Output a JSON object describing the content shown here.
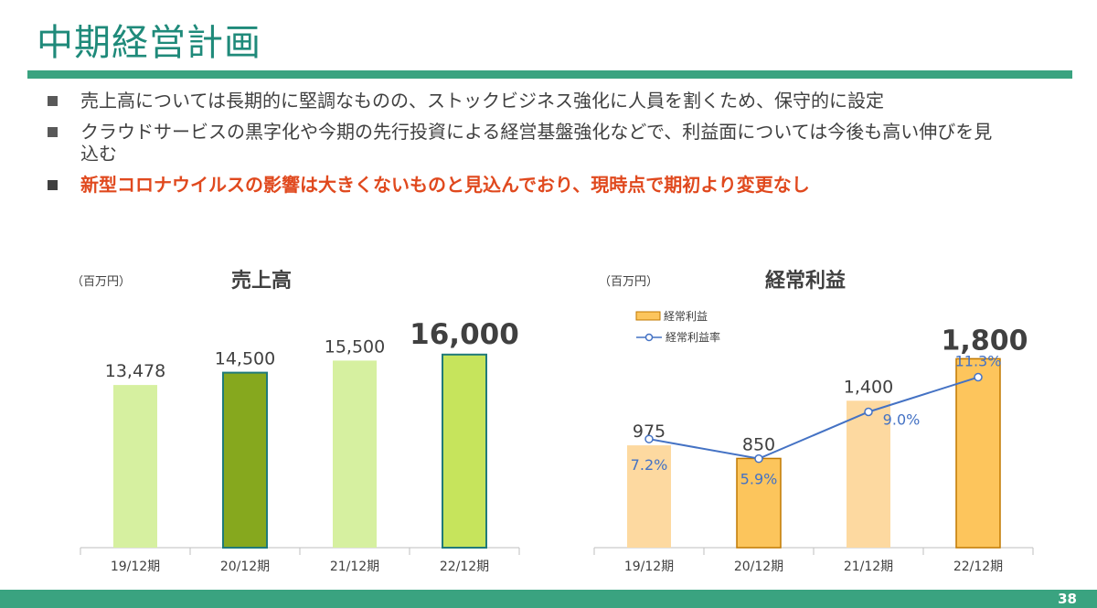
{
  "title": "中期経営計画",
  "bullets": [
    "売上高については長期的に堅調なものの、ストックビジネス強化に人員を割くため、保守的に設定",
    "クラウドサービスの黒字化や今期の先行投資による経営基盤強化などで、利益面については今後も高い伸びを見込む",
    "新型コロナウイルスの影響は大きくないものと見込んでおり、現時点で期初より変更なし"
  ],
  "page_number": "38",
  "colors": {
    "title": "#1f8a7a",
    "accent_bar": "#3aa380",
    "highlight_text": "#e0491e",
    "sales_light": "#d6f0a0",
    "sales_dark": "#86a81e",
    "sales_plan": "#c6e45c",
    "profit_light": "#fdd9a0",
    "profit_dark": "#fcc55c",
    "profit_plan": "#fdc55c",
    "line": "#4472c4"
  },
  "chart_data": [
    {
      "type": "bar",
      "title": "売上高",
      "unit": "（百万円）",
      "categories": [
        "19/12期",
        "20/12期",
        "21/12期",
        "22/12期"
      ],
      "values": [
        13478,
        14500,
        15500,
        16000
      ],
      "value_labels": [
        "13,478",
        "14,500",
        "15,500",
        "16,000"
      ],
      "ylim": [
        0,
        20000
      ]
    },
    {
      "type": "bar",
      "title": "経常利益",
      "unit": "（百万円）",
      "categories": [
        "19/12期",
        "20/12期",
        "21/12期",
        "22/12期"
      ],
      "series": [
        {
          "name": "経常利益",
          "type": "bar",
          "values": [
            975,
            850,
            1400,
            1800
          ],
          "labels": [
            "975",
            "850",
            "1,400",
            "1,800"
          ]
        },
        {
          "name": "経常利益率",
          "type": "line",
          "values": [
            7.2,
            5.9,
            9.0,
            11.3
          ],
          "labels": [
            "7.2%",
            "5.9%",
            "9.0%",
            "11.3%"
          ]
        }
      ],
      "ylim": [
        0,
        2300
      ],
      "y2lim": [
        0,
        16
      ]
    }
  ]
}
